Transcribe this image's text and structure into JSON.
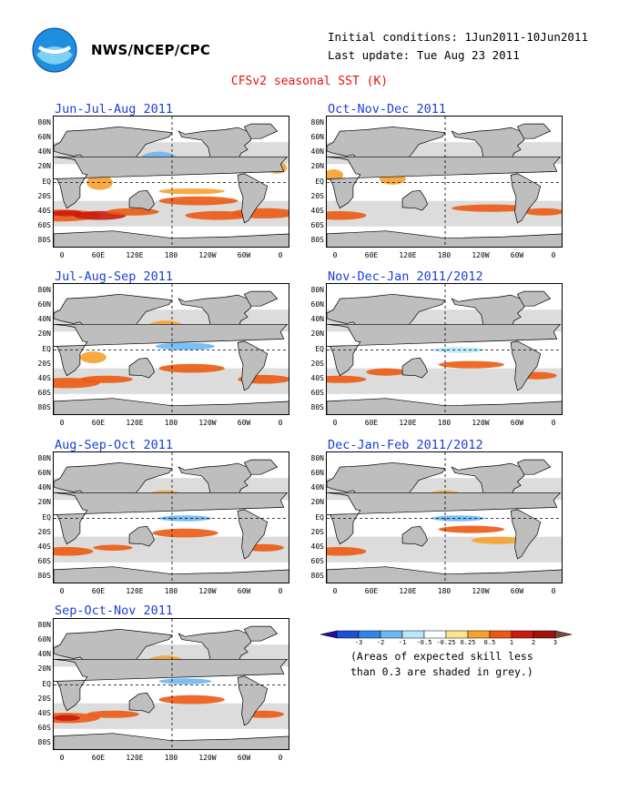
{
  "header": {
    "agency": "NWS/NCEP/CPC",
    "initial_conditions": "Initial conditions: 1Jun2011-10Jun2011",
    "last_update": "Last update: Tue Aug 23 2011",
    "title": "CFSv2 seasonal SST (K)"
  },
  "panels": [
    {
      "title": "Jun-Jul-Aug 2011"
    },
    {
      "title": "Oct-Nov-Dec 2011"
    },
    {
      "title": "Jul-Aug-Sep 2011"
    },
    {
      "title": "Nov-Dec-Jan 2011/2012"
    },
    {
      "title": "Aug-Sep-Oct 2011"
    },
    {
      "title": "Dec-Jan-Feb 2011/2012"
    },
    {
      "title": "Sep-Oct-Nov 2011"
    }
  ],
  "axes": {
    "lat_labels": [
      "80N",
      "60N",
      "40N",
      "20N",
      "EQ",
      "20S",
      "40S",
      "60S",
      "80S"
    ],
    "lon_labels": [
      "0",
      "60E",
      "120E",
      "180",
      "120W",
      "60W",
      "0"
    ]
  },
  "legend": {
    "labels": [
      "-3",
      "-2",
      "-1",
      "-0.5",
      "-0.25",
      "0.25",
      "0.5",
      "1",
      "2",
      "3"
    ],
    "colors": [
      "#1c0fa8",
      "#1e4fd6",
      "#2f86e8",
      "#6cb7f2",
      "#b8e8f8",
      "#ffffff",
      "#fbe58a",
      "#f5a12c",
      "#ec5a12",
      "#cc1a0c",
      "#a0140a",
      "#7a4a3a"
    ],
    "note_line1": "(Areas of expected skill less",
    "note_line2": "than 0.3 are shaded in grey.)"
  },
  "colors": {
    "title": "#e81010",
    "panel_title": "#1a3fd8",
    "land": "#bebebe",
    "low_skill": "#c0c0c0"
  }
}
